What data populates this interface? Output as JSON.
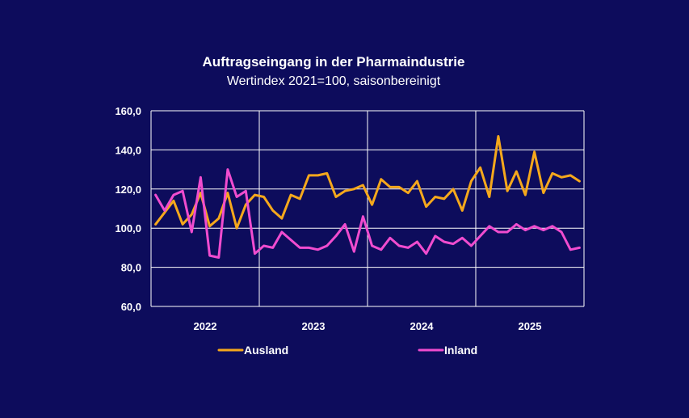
{
  "chart_data": {
    "type": "line",
    "title": "Auftragseingang in der Pharmaindustrie",
    "subtitle": "Wertindex 2021=100, saisonbereinigt",
    "xlabel": "",
    "ylabel": "",
    "ylim": [
      60,
      160
    ],
    "yticks": [
      "160,0",
      "140,0",
      "120,0",
      "100,0",
      "80,0",
      "60,0"
    ],
    "ytick_values": [
      160,
      140,
      120,
      100,
      80,
      60
    ],
    "year_labels": [
      "2022",
      "2023",
      "2024",
      "2025"
    ],
    "x_start": "2022-01",
    "x_end": "2025-12",
    "grid": true,
    "legend_position": "bottom",
    "series": [
      {
        "name": "Ausland",
        "color": "#f5a81c",
        "values": [
          102,
          108,
          114,
          102,
          107,
          118,
          101,
          105,
          118,
          100,
          112,
          117,
          116,
          109,
          105,
          117,
          115,
          127,
          127,
          128,
          116,
          119,
          120,
          122,
          112,
          125,
          121,
          121,
          118,
          124,
          111,
          116,
          115,
          120,
          109,
          124,
          131,
          116,
          147,
          119,
          129,
          117,
          139,
          118,
          128,
          126,
          127,
          124
        ]
      },
      {
        "name": "Inland",
        "color": "#f04ccf",
        "values": [
          117,
          109,
          117,
          119,
          98,
          126,
          86,
          85,
          130,
          116,
          119,
          87,
          91,
          90,
          98,
          94,
          90,
          90,
          89,
          91,
          96,
          102,
          88,
          106,
          91,
          89,
          95,
          91,
          90,
          93,
          87,
          96,
          93,
          92,
          95,
          91,
          96,
          101,
          98,
          98,
          102,
          99,
          101,
          99,
          101,
          98,
          89,
          90
        ]
      }
    ]
  }
}
